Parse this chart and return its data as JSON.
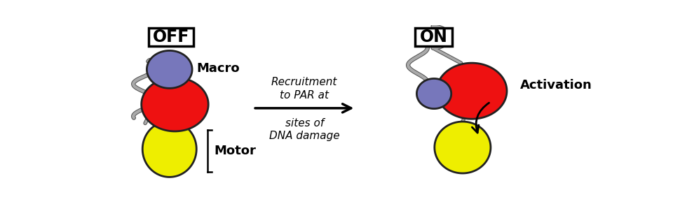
{
  "bg_color": "#ffffff",
  "off_label": "OFF",
  "on_label": "ON",
  "macro_label": "Macro",
  "motor_label": "Motor",
  "activation_label": "Activation",
  "arrow_text_line1": "Recruitment",
  "arrow_text_line2": "to PAR at",
  "arrow_text_line3": "sites of",
  "arrow_text_line4": "DNA damage",
  "blue_color": "#7777bb",
  "red_color": "#ee1111",
  "yellow_color": "#eeee00",
  "coil_color": "#aaaaaa",
  "coil_edge": "#555555",
  "black": "#000000"
}
